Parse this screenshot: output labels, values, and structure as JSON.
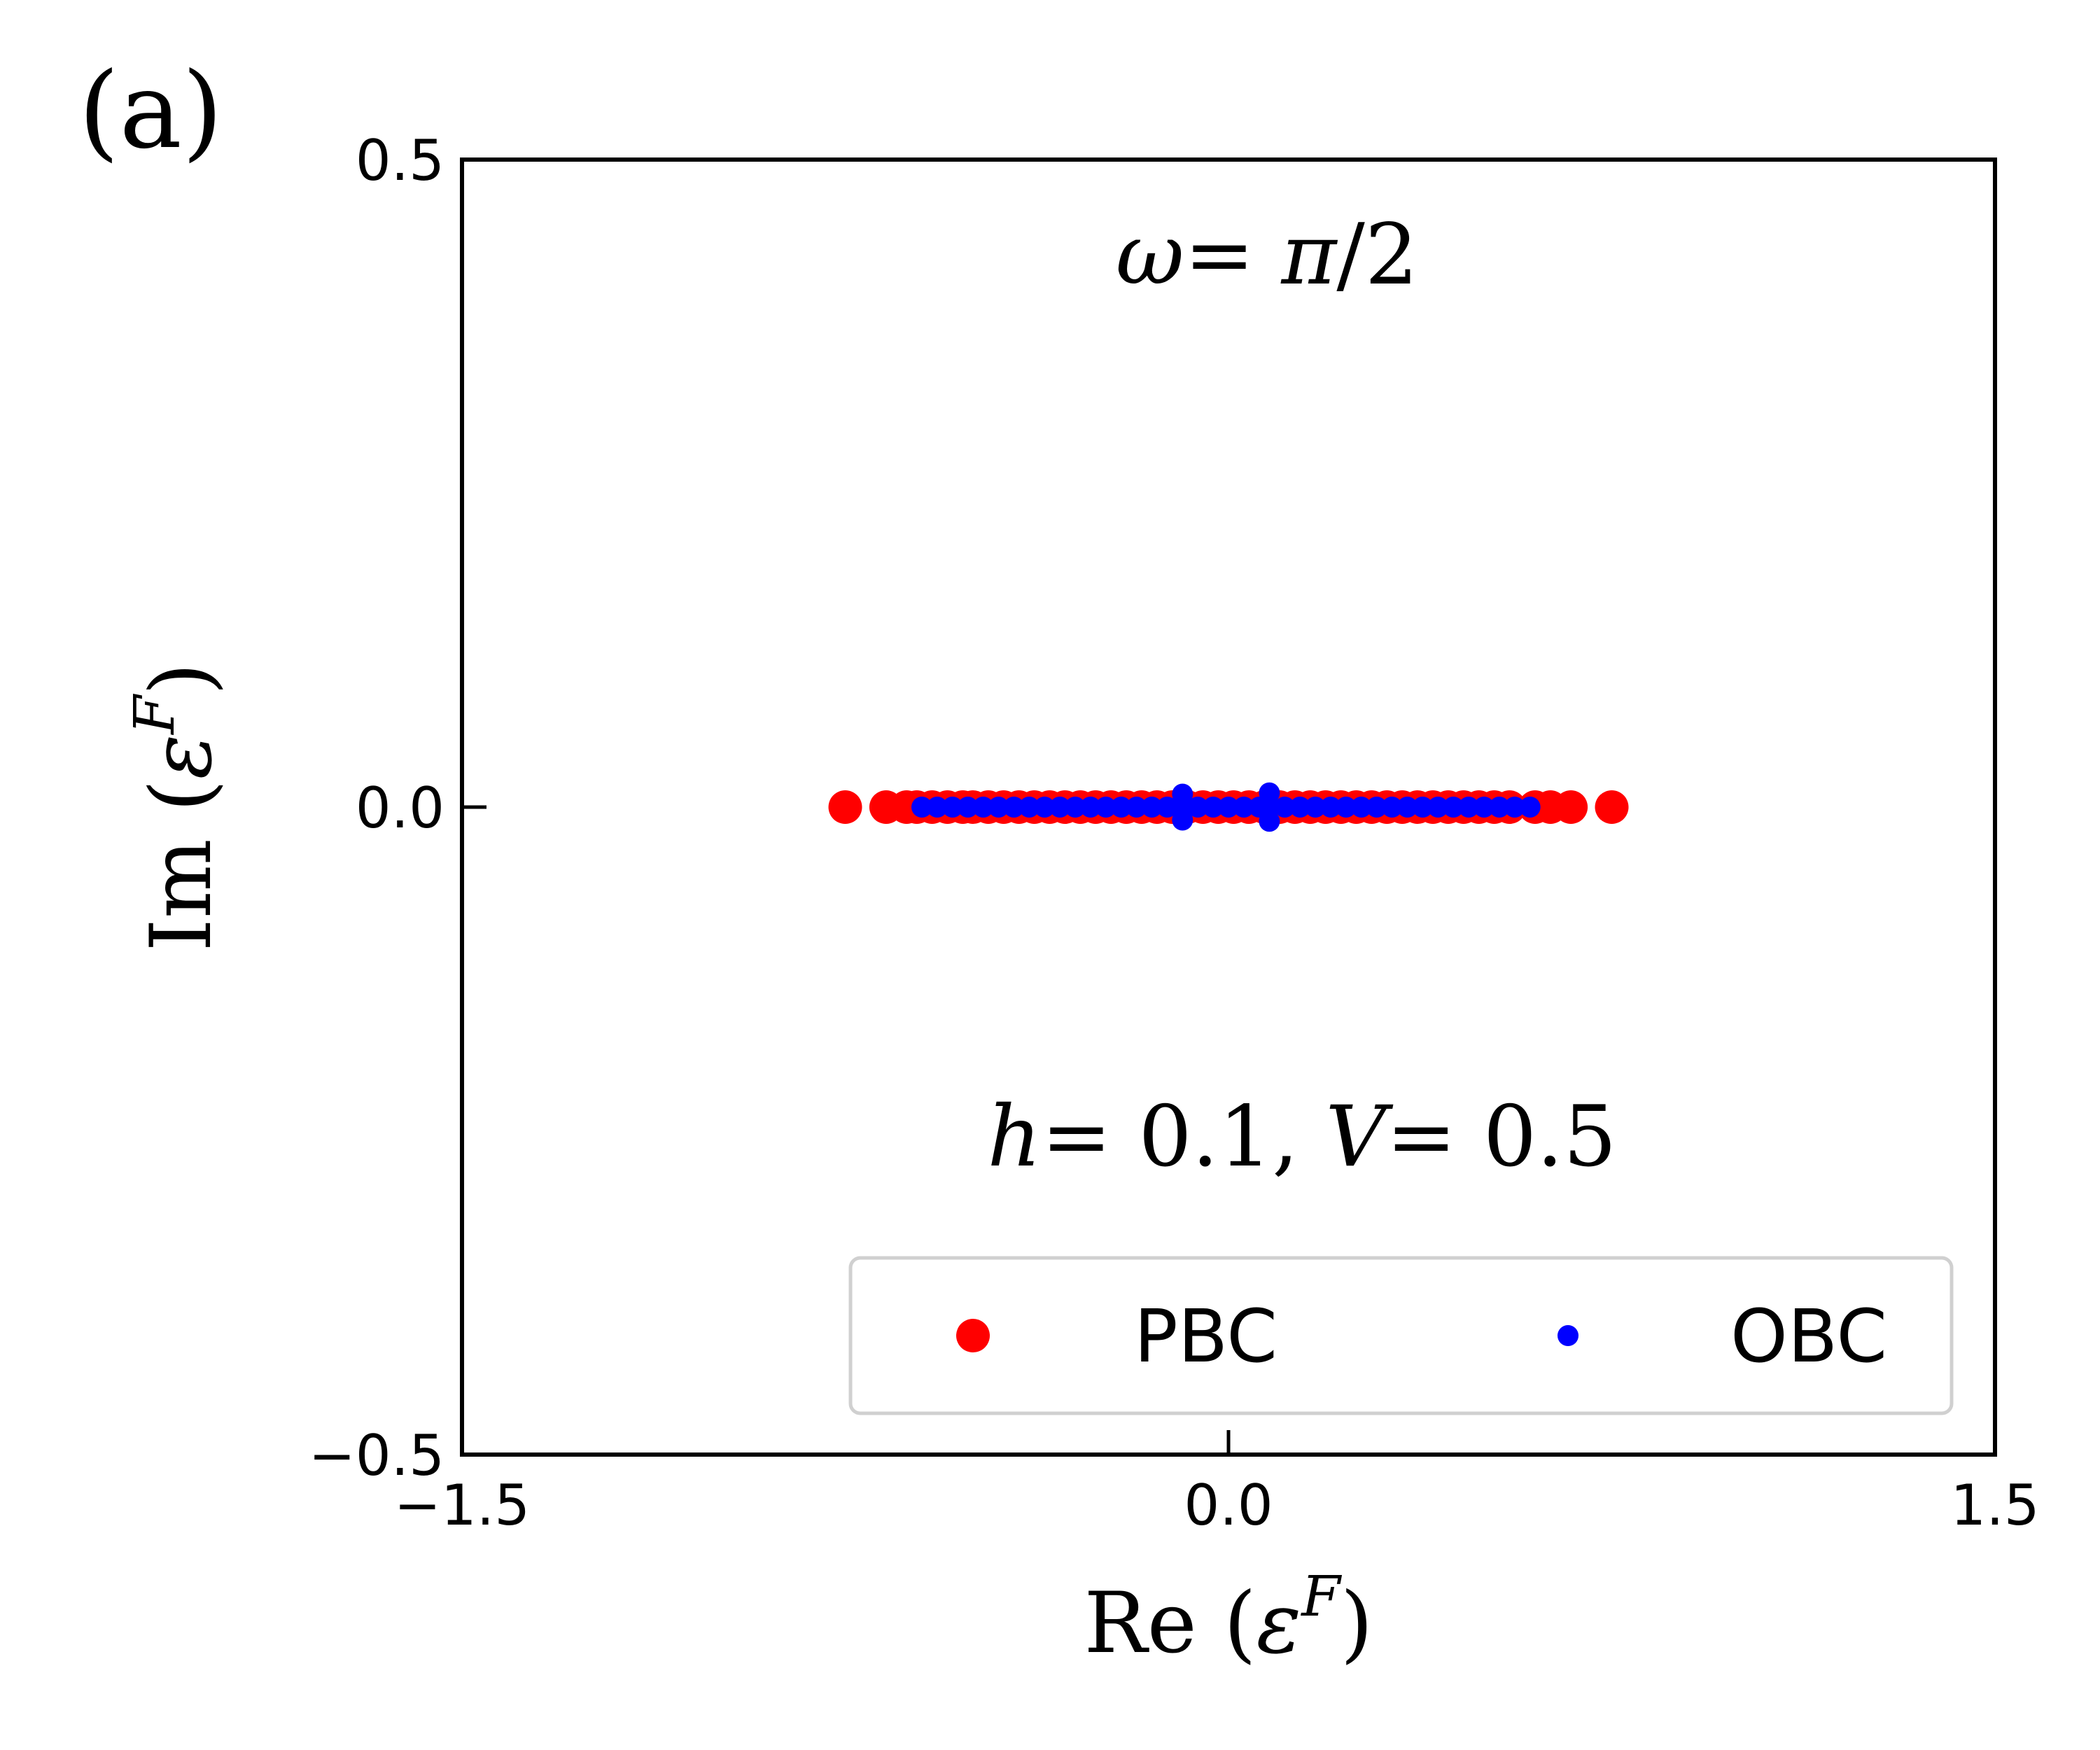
{
  "panel_label": "(a)",
  "chart_data": {
    "type": "scatter",
    "xlabel": {
      "prefix": "Re (",
      "symbol": "ε",
      "superscript": "F",
      "suffix": ")"
    },
    "ylabel": {
      "prefix": "Im (",
      "symbol": "ε",
      "superscript": "F",
      "suffix": ")"
    },
    "xlim": [
      -1.5,
      1.5
    ],
    "ylim": [
      -0.5,
      0.5
    ],
    "xticks": [
      -1.5,
      0.0,
      1.5
    ],
    "xtick_labels": [
      "−1.5",
      "0.0",
      "1.5"
    ],
    "yticks": [
      -0.5,
      0.0,
      0.5
    ],
    "ytick_labels": [
      "−0.5",
      "0.0",
      "0.5"
    ],
    "grid": false,
    "legend_position": "lower-right",
    "annotations": {
      "omega": {
        "symbol": "ω",
        "equals": "= ",
        "value_symbol": "π",
        "value_rest": "/2"
      },
      "params": {
        "h_symbol": "h",
        "h_value": "= 0.1, ",
        "v_symbol": "V",
        "v_value": "= 0.5"
      }
    },
    "series": [
      {
        "name": "PBC",
        "color": "#ff0000",
        "marker": "large-circle",
        "x": [
          -0.75,
          -0.67,
          -0.63,
          -0.61,
          -0.58,
          -0.55,
          -0.52,
          -0.5,
          -0.47,
          -0.44,
          -0.41,
          -0.38,
          -0.35,
          -0.32,
          -0.29,
          -0.26,
          -0.23,
          -0.2,
          -0.17,
          -0.14,
          -0.11,
          -0.08,
          -0.05,
          -0.02,
          0.01,
          0.04,
          0.07,
          0.1,
          0.13,
          0.16,
          0.19,
          0.22,
          0.25,
          0.28,
          0.31,
          0.34,
          0.37,
          0.4,
          0.43,
          0.46,
          0.49,
          0.52,
          0.55,
          0.6,
          0.63,
          0.67,
          0.75
        ],
        "y": [
          0,
          0,
          0,
          0,
          0,
          0,
          0,
          0,
          0,
          0,
          0,
          0,
          0,
          0,
          0,
          0,
          0,
          0,
          0,
          0,
          0,
          0,
          0,
          0,
          0,
          0,
          0,
          0,
          0,
          0,
          0,
          0,
          0,
          0,
          0,
          0,
          0,
          0,
          0,
          0,
          0,
          0,
          0,
          0,
          0,
          0,
          0
        ]
      },
      {
        "name": "OBC",
        "color": "#0000ff",
        "marker": "small-circle",
        "x": [
          -0.6,
          -0.57,
          -0.54,
          -0.51,
          -0.48,
          -0.45,
          -0.42,
          -0.39,
          -0.36,
          -0.33,
          -0.3,
          -0.27,
          -0.24,
          -0.21,
          -0.18,
          -0.15,
          -0.12,
          -0.09,
          -0.09,
          -0.09,
          -0.06,
          -0.03,
          0.0,
          0.03,
          0.06,
          0.08,
          0.08,
          0.08,
          0.11,
          0.14,
          0.17,
          0.2,
          0.23,
          0.26,
          0.29,
          0.32,
          0.35,
          0.38,
          0.41,
          0.44,
          0.47,
          0.5,
          0.53,
          0.56,
          0.59
        ],
        "y": [
          0,
          0,
          0,
          0,
          0,
          0,
          0,
          0,
          0,
          0,
          0,
          0,
          0,
          0,
          0,
          0,
          0,
          0.01,
          0,
          -0.01,
          0,
          0,
          0,
          0,
          0,
          0.011,
          0,
          -0.011,
          0,
          0,
          0,
          0,
          0,
          0,
          0,
          0,
          0,
          0,
          0,
          0,
          0,
          0,
          0,
          0,
          0
        ]
      }
    ]
  }
}
